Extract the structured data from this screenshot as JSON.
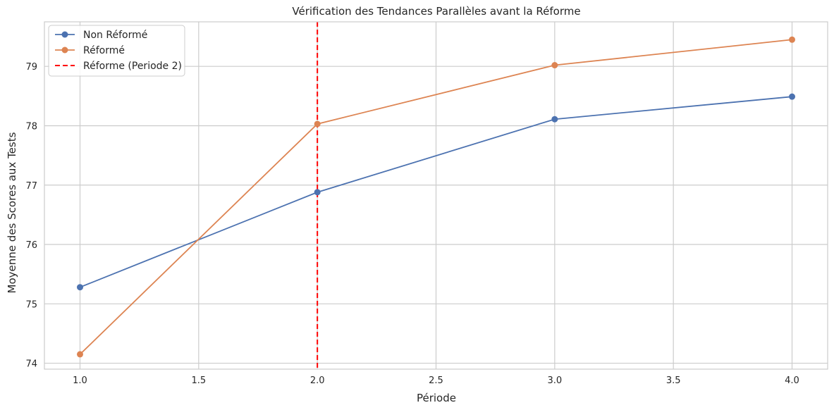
{
  "chart_data": {
    "type": "line",
    "title": "Vérification des Tendances Parallèles avant la Réforme",
    "xlabel": "Période",
    "ylabel": "Moyenne des Scores aux Tests",
    "x": [
      1,
      2,
      3,
      4
    ],
    "xlim": [
      0.85,
      4.15
    ],
    "ylim": [
      73.9,
      79.75
    ],
    "xticks": [
      1.0,
      1.5,
      2.0,
      2.5,
      3.0,
      3.5,
      4.0
    ],
    "xtick_labels": [
      "1.0",
      "1.5",
      "2.0",
      "2.5",
      "3.0",
      "3.5",
      "4.0"
    ],
    "yticks": [
      74,
      75,
      76,
      77,
      78,
      79
    ],
    "ytick_labels": [
      "74",
      "75",
      "76",
      "77",
      "78",
      "79"
    ],
    "grid": true,
    "legend_position": "top-left",
    "series": [
      {
        "name": "Non Réformé",
        "color": "#4c72b0",
        "marker": "circle",
        "values": [
          75.28,
          76.88,
          78.11,
          78.49
        ]
      },
      {
        "name": "Réformé",
        "color": "#dd8452",
        "marker": "circle",
        "values": [
          74.15,
          78.03,
          79.02,
          79.45
        ]
      }
    ],
    "reference_line": {
      "name": "Réforme (Periode 2)",
      "orientation": "vertical",
      "x": 2,
      "color": "#ff0000",
      "style": "dashed"
    }
  }
}
